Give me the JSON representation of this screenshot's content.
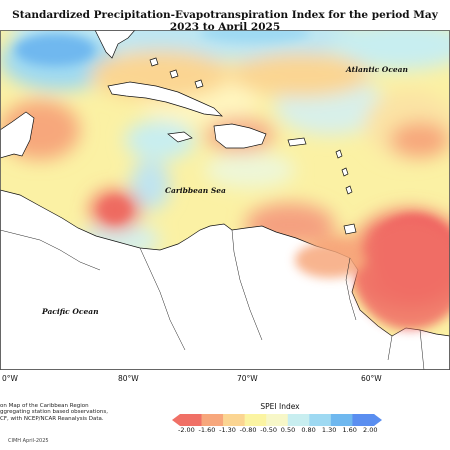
{
  "title": "Standardized Precipitation-Evapotranspiration Index for the period May 2023 to April 2025",
  "labels": {
    "atlantic": "Atlantic Ocean",
    "caribbean": "Caribbean Sea",
    "pacific": "Pacific Ocean"
  },
  "longitude_ticks": [
    "0°W",
    "80°W",
    "70°W",
    "60°W"
  ],
  "footnote": [
    "on Map of the Caribbean Region",
    "ggregating station based observations,",
    "CF, with NCEP/NCAR Reanalysis Data."
  ],
  "credit": "CIMH April-2025",
  "legend": {
    "title": "SPEI Index",
    "values": [
      "-2.00",
      "-1.60",
      "-1.30",
      "-0.80",
      "-0.50",
      "0.50",
      "0.80",
      "1.30",
      "1.60",
      "2.00"
    ],
    "colors": [
      "#f07066",
      "#f7a77c",
      "#fbd592",
      "#fbf4a2",
      "#f7f7c8",
      "#c8eef0",
      "#9ed9f2",
      "#6fb8ef",
      "#5a8ef0"
    ]
  }
}
